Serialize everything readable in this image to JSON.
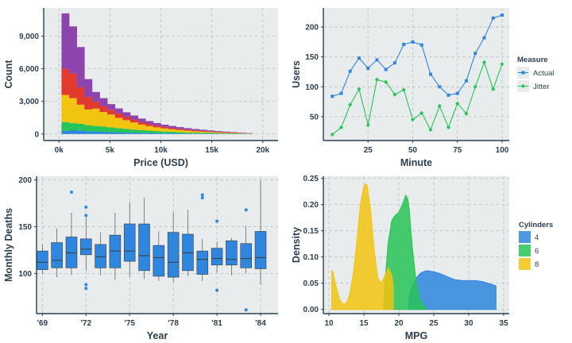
{
  "chart_data": [
    {
      "id": "hist",
      "type": "bar",
      "stacked": true,
      "xlabel": "Price (USD)",
      "ylabel": "Count",
      "xlim": [
        -1500,
        21500
      ],
      "ylim": [
        -600,
        11600
      ],
      "x_ticks": [
        0,
        5000,
        10000,
        15000,
        20000
      ],
      "x_tick_labels": [
        "0k",
        "5k",
        "10k",
        "15k",
        "20k"
      ],
      "y_ticks": [
        0,
        3000,
        6000,
        9000
      ],
      "y_tick_labels": [
        "0",
        "3,000",
        "6,000",
        "9,000"
      ],
      "bin_edges": [
        250,
        1000,
        1750,
        2500,
        3250,
        4000,
        4750,
        5500,
        6250,
        7000,
        7750,
        8500,
        9250,
        10000,
        10750,
        11500,
        12250,
        13000,
        13750,
        14500,
        15250,
        16000,
        16750,
        17500,
        18250,
        19000
      ],
      "series": [
        {
          "color": "#2e86de",
          "values": [
            300,
            350,
            330,
            250,
            220,
            200,
            180,
            160,
            140,
            120,
            100,
            90,
            80,
            70,
            60,
            50,
            40,
            35,
            30,
            25,
            20,
            18,
            15,
            12,
            10
          ]
        },
        {
          "color": "#27c457",
          "values": [
            800,
            650,
            620,
            560,
            520,
            480,
            430,
            380,
            330,
            290,
            250,
            220,
            190,
            160,
            140,
            120,
            100,
            90,
            80,
            70,
            60,
            50,
            40,
            30,
            20
          ]
        },
        {
          "color": "#f1c40f",
          "values": [
            2500,
            2300,
            1750,
            1450,
            1600,
            1350,
            1180,
            950,
            800,
            650,
            520,
            420,
            340,
            280,
            230,
            190,
            160,
            130,
            110,
            90,
            70,
            55,
            45,
            30,
            20
          ]
        },
        {
          "color": "#e23a2e",
          "values": [
            2400,
            2250,
            1600,
            1150,
            650,
            550,
            440,
            400,
            330,
            280,
            240,
            200,
            170,
            150,
            130,
            115,
            100,
            85,
            75,
            65,
            55,
            45,
            35,
            25,
            15
          ]
        },
        {
          "color": "#8e44ad",
          "values": [
            5100,
            4350,
            3700,
            1640,
            880,
            720,
            520,
            460,
            400,
            360,
            310,
            260,
            230,
            200,
            180,
            160,
            140,
            120,
            100,
            80,
            65,
            52,
            45,
            33,
            25
          ]
        }
      ]
    },
    {
      "id": "users",
      "type": "line",
      "xlabel": "Minute",
      "ylabel": "Users",
      "xlim": [
        0,
        104
      ],
      "ylim": [
        10,
        232
      ],
      "x_ticks": [
        25,
        50,
        75,
        100
      ],
      "x_tick_labels": [
        "25",
        "50",
        "75",
        "100"
      ],
      "y_ticks": [
        50,
        100,
        150,
        200
      ],
      "y_tick_labels": [
        "50",
        "100",
        "150",
        "200"
      ],
      "legend_title": "Measure",
      "legend_position": "right",
      "x": [
        5,
        10,
        15,
        20,
        25,
        30,
        35,
        40,
        45,
        50,
        55,
        60,
        65,
        70,
        75,
        80,
        85,
        90,
        95,
        100
      ],
      "series": [
        {
          "name": "Actual",
          "color": "#2e86de",
          "marker": "square",
          "values": [
            84,
            89,
            126,
            148,
            131,
            145,
            129,
            140,
            171,
            175,
            170,
            121,
            100,
            86,
            89,
            110,
            156,
            182,
            215,
            220
          ]
        },
        {
          "name": "Jitter",
          "color": "#27c457",
          "marker": "diamond",
          "values": [
            20,
            32,
            70,
            96,
            36,
            112,
            108,
            87,
            95,
            45,
            56,
            28,
            68,
            32,
            72,
            55,
            100,
            141,
            96,
            138
          ]
        }
      ]
    },
    {
      "id": "box",
      "type": "box",
      "xlabel": "Year",
      "ylabel": "Monthly Deaths",
      "xlim": [
        1968.6,
        1985.2
      ],
      "ylim": [
        57,
        204
      ],
      "x_ticks": [
        1969,
        1972,
        1975,
        1978,
        1981,
        1984
      ],
      "x_tick_labels": [
        "'69",
        "'72",
        "'75",
        "'78",
        "'81",
        "'84"
      ],
      "y_ticks": [
        100,
        150,
        200
      ],
      "y_tick_labels": [
        "100",
        "150",
        "200"
      ],
      "color": "#2e86de",
      "boxes": [
        {
          "x": 1969,
          "q1": 104,
          "median": 112,
          "q3": 124,
          "lo": 99,
          "hi": 131,
          "outliers": []
        },
        {
          "x": 1970,
          "q1": 106,
          "median": 114,
          "q3": 133,
          "lo": 96,
          "hi": 148,
          "outliers": []
        },
        {
          "x": 1971,
          "q1": 106,
          "median": 122,
          "q3": 139,
          "lo": 98,
          "hi": 165,
          "outliers": [
            187
          ]
        },
        {
          "x": 1972,
          "q1": 120,
          "median": 126,
          "q3": 137,
          "lo": 103,
          "hi": 160,
          "outliers": [
            171,
            162,
            88,
            84
          ]
        },
        {
          "x": 1973,
          "q1": 106,
          "median": 118,
          "q3": 131,
          "lo": 98,
          "hi": 144,
          "outliers": []
        },
        {
          "x": 1974,
          "q1": 106,
          "median": 124,
          "q3": 141,
          "lo": 93,
          "hi": 165,
          "outliers": []
        },
        {
          "x": 1975,
          "q1": 113,
          "median": 124,
          "q3": 153,
          "lo": 96,
          "hi": 176,
          "outliers": []
        },
        {
          "x": 1976,
          "q1": 103,
          "median": 119,
          "q3": 153,
          "lo": 94,
          "hi": 181,
          "outliers": []
        },
        {
          "x": 1977,
          "q1": 97,
          "median": 117,
          "q3": 130,
          "lo": 92,
          "hi": 145,
          "outliers": []
        },
        {
          "x": 1978,
          "q1": 96,
          "median": 112,
          "q3": 144,
          "lo": 91,
          "hi": 166,
          "outliers": []
        },
        {
          "x": 1979,
          "q1": 103,
          "median": 122,
          "q3": 142,
          "lo": 97,
          "hi": 168,
          "outliers": []
        },
        {
          "x": 1980,
          "q1": 99,
          "median": 115,
          "q3": 124,
          "lo": 92,
          "hi": 137,
          "outliers": [
            184,
            181
          ]
        },
        {
          "x": 1981,
          "q1": 109,
          "median": 116,
          "q3": 127,
          "lo": 101,
          "hi": 134,
          "outliers": [
            156,
            82
          ]
        },
        {
          "x": 1982,
          "q1": 109,
          "median": 115,
          "q3": 135,
          "lo": 98,
          "hi": 138,
          "outliers": []
        },
        {
          "x": 1983,
          "q1": 106,
          "median": 116,
          "q3": 132,
          "lo": 100,
          "hi": 151,
          "outliers": [
            168,
            61
          ]
        },
        {
          "x": 1984,
          "q1": 105,
          "median": 117,
          "q3": 145,
          "lo": 88,
          "hi": 200,
          "outliers": []
        }
      ]
    },
    {
      "id": "density",
      "type": "area",
      "xlabel": "MPG",
      "ylabel": "Density",
      "xlim": [
        9.2,
        35.8
      ],
      "ylim": [
        -0.008,
        0.254
      ],
      "x_ticks": [
        10,
        15,
        20,
        25,
        30,
        35
      ],
      "x_tick_labels": [
        "10",
        "15",
        "20",
        "25",
        "30",
        "35"
      ],
      "y_ticks": [
        0,
        0.05,
        0.1,
        0.15,
        0.2,
        0.25
      ],
      "y_tick_labels": [
        "0.00",
        "0.05",
        "0.10",
        "0.15",
        "0.20",
        "0.25"
      ],
      "legend_title": "Cylinders",
      "legend_position": "right",
      "series": [
        {
          "name": "4",
          "color": "#2e86de",
          "x": [
            21.4,
            21.9,
            22.5,
            23.0,
            23.5,
            24.0,
            25.0,
            26.0,
            27.0,
            28.0,
            29.0,
            30.0,
            31.0,
            32.0,
            33.0,
            33.9
          ],
          "values": [
            0.02,
            0.045,
            0.06,
            0.068,
            0.072,
            0.074,
            0.072,
            0.068,
            0.062,
            0.057,
            0.055,
            0.055,
            0.055,
            0.053,
            0.049,
            0.045
          ]
        },
        {
          "name": "6",
          "color": "#27c457",
          "x": [
            17.8,
            18.0,
            18.5,
            19.0,
            19.5,
            20.0,
            20.5,
            21.0,
            21.3,
            21.5,
            21.7,
            22.0,
            22.5,
            23.0,
            23.5,
            24.0
          ],
          "values": [
            0.0,
            0.05,
            0.13,
            0.17,
            0.18,
            0.185,
            0.2,
            0.218,
            0.21,
            0.19,
            0.155,
            0.11,
            0.05,
            0.02,
            0.008,
            0.0
          ]
        },
        {
          "name": "8",
          "color": "#f1c40f",
          "x": [
            10.4,
            10.6,
            11.0,
            11.5,
            12.0,
            12.5,
            13.0,
            13.5,
            14.0,
            14.5,
            15.0,
            15.3,
            15.5,
            16.0,
            16.5,
            17.0,
            17.5,
            18.0,
            18.5,
            19.0,
            19.2
          ],
          "values": [
            0.075,
            0.07,
            0.045,
            0.02,
            0.01,
            0.012,
            0.03,
            0.07,
            0.13,
            0.2,
            0.235,
            0.24,
            0.235,
            0.185,
            0.11,
            0.06,
            0.05,
            0.065,
            0.08,
            0.065,
            0.045
          ]
        }
      ]
    }
  ]
}
